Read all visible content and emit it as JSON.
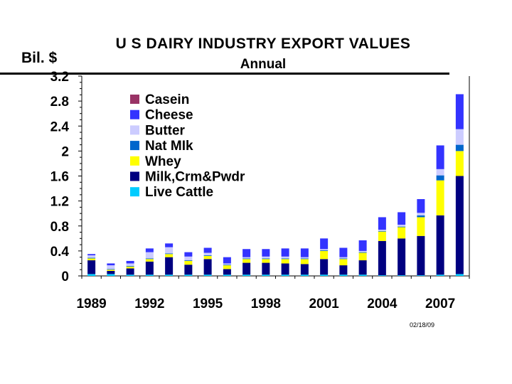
{
  "chart_data": {
    "type": "bar",
    "stacked": true,
    "title": "U S  DAIRY  INDUSTRY  EXPORT  VALUES",
    "subtitle": "Annual",
    "ylabel": "Bil. $",
    "xlabel": "",
    "ylim": [
      0,
      3.2
    ],
    "yticks": [
      0,
      0.4,
      0.8,
      1.2,
      1.6,
      2,
      2.4,
      2.8,
      3.2
    ],
    "ytick_labels": [
      "0",
      "0.4",
      "0.8",
      "1.2",
      "1.6",
      "2",
      "2.4",
      "2.8",
      "3.2"
    ],
    "categories": [
      "1989",
      "1990",
      "1991",
      "1992",
      "1993",
      "1994",
      "1995",
      "1996",
      "1997",
      "1998",
      "1999",
      "2000",
      "2001",
      "2002",
      "2003",
      "2004",
      "2005",
      "2006",
      "2007",
      "2008"
    ],
    "xtick_labels": [
      "1989",
      "1992",
      "1995",
      "1998",
      "2001",
      "2004",
      "2007"
    ],
    "legend_position": "top-left",
    "series": [
      {
        "name": "Live Cattle",
        "color": "#00ccff",
        "values": [
          0.03,
          0.03,
          0.02,
          0.02,
          0.02,
          0.02,
          0.02,
          0.02,
          0.02,
          0.02,
          0.02,
          0.02,
          0.02,
          0.02,
          0.02,
          0.01,
          0.01,
          0.01,
          0.02,
          0.03
        ]
      },
      {
        "name": "Milk,Crm&Pwdr",
        "color": "#000080",
        "values": [
          0.22,
          0.05,
          0.1,
          0.21,
          0.28,
          0.16,
          0.25,
          0.09,
          0.19,
          0.19,
          0.18,
          0.17,
          0.25,
          0.15,
          0.23,
          0.55,
          0.59,
          0.63,
          0.95,
          1.57
        ]
      },
      {
        "name": "Whey",
        "color": "#ffff00",
        "values": [
          0.03,
          0.02,
          0.03,
          0.04,
          0.05,
          0.06,
          0.05,
          0.06,
          0.06,
          0.06,
          0.07,
          0.08,
          0.13,
          0.1,
          0.12,
          0.15,
          0.18,
          0.3,
          0.56,
          0.4
        ]
      },
      {
        "name": "Nat MIk",
        "color": "#0066cc",
        "values": [
          0.01,
          0.01,
          0.01,
          0.01,
          0.01,
          0.01,
          0.01,
          0.01,
          0.01,
          0.01,
          0.01,
          0.01,
          0.01,
          0.01,
          0.01,
          0.01,
          0.01,
          0.03,
          0.08,
          0.1
        ]
      },
      {
        "name": "Butter",
        "color": "#ccccff",
        "values": [
          0.04,
          0.06,
          0.04,
          0.1,
          0.1,
          0.06,
          0.04,
          0.02,
          0.02,
          0.03,
          0.03,
          0.02,
          0.02,
          0.02,
          0.02,
          0.02,
          0.03,
          0.04,
          0.1,
          0.25
        ]
      },
      {
        "name": "Cheese",
        "color": "#3333ff",
        "values": [
          0.02,
          0.03,
          0.04,
          0.06,
          0.06,
          0.07,
          0.08,
          0.1,
          0.13,
          0.12,
          0.13,
          0.14,
          0.17,
          0.15,
          0.17,
          0.2,
          0.2,
          0.22,
          0.38,
          0.56
        ]
      },
      {
        "name": "Casein",
        "color": "#993366",
        "values": [
          0,
          0,
          0,
          0,
          0,
          0,
          0,
          0,
          0,
          0,
          0,
          0,
          0,
          0,
          0,
          0,
          0,
          0,
          0,
          0
        ]
      }
    ],
    "legend_order": [
      "Casein",
      "Cheese",
      "Butter",
      "Nat MIk",
      "Whey",
      "Milk,Crm&Pwdr",
      "Live Cattle"
    ]
  },
  "footer_stamp": "02/18/09"
}
